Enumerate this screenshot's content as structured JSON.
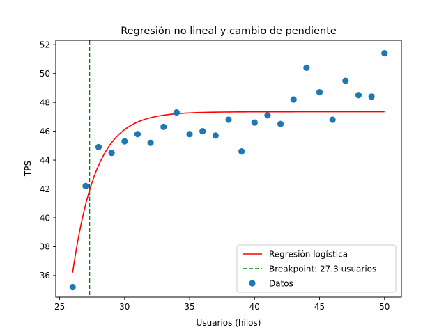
{
  "chart_data": {
    "type": "scatter",
    "title": "Regresión no lineal y cambio de pendiente",
    "xlabel": "Usuarios (hilos)",
    "ylabel": "TPS",
    "xlim": [
      24.7,
      51.3
    ],
    "ylim": [
      34.5,
      52.3
    ],
    "xticks": [
      25,
      30,
      35,
      40,
      45,
      50
    ],
    "yticks": [
      36,
      38,
      40,
      42,
      44,
      46,
      48,
      50,
      52
    ],
    "grid": false,
    "legend_position": "lower-right",
    "series": [
      {
        "name": "Regresión logística",
        "kind": "line",
        "color": "#ff0000",
        "model": {
          "L": 47.35,
          "k": 0.55,
          "x0": 25.8,
          "c": 0,
          "ymin_at_start": 36.2
        },
        "x_range": [
          26,
          50
        ]
      },
      {
        "name": "Breakpoint: 27.3 usuarios",
        "kind": "vline",
        "color": "#008000",
        "x": 27.3
      },
      {
        "name": "Datos",
        "kind": "scatter",
        "color": "#1f77b4",
        "x": [
          26,
          27,
          28,
          29,
          30,
          31,
          32,
          33,
          34,
          35,
          36,
          37,
          38,
          39,
          40,
          41,
          42,
          43,
          44,
          45,
          46,
          47,
          48,
          49,
          50
        ],
        "y": [
          35.2,
          42.2,
          44.9,
          44.5,
          45.3,
          45.8,
          45.2,
          46.3,
          47.3,
          45.8,
          46.0,
          45.7,
          46.8,
          44.6,
          46.6,
          47.1,
          46.5,
          48.2,
          50.4,
          48.7,
          46.8,
          49.5,
          48.5,
          48.4,
          51.4
        ]
      }
    ]
  }
}
